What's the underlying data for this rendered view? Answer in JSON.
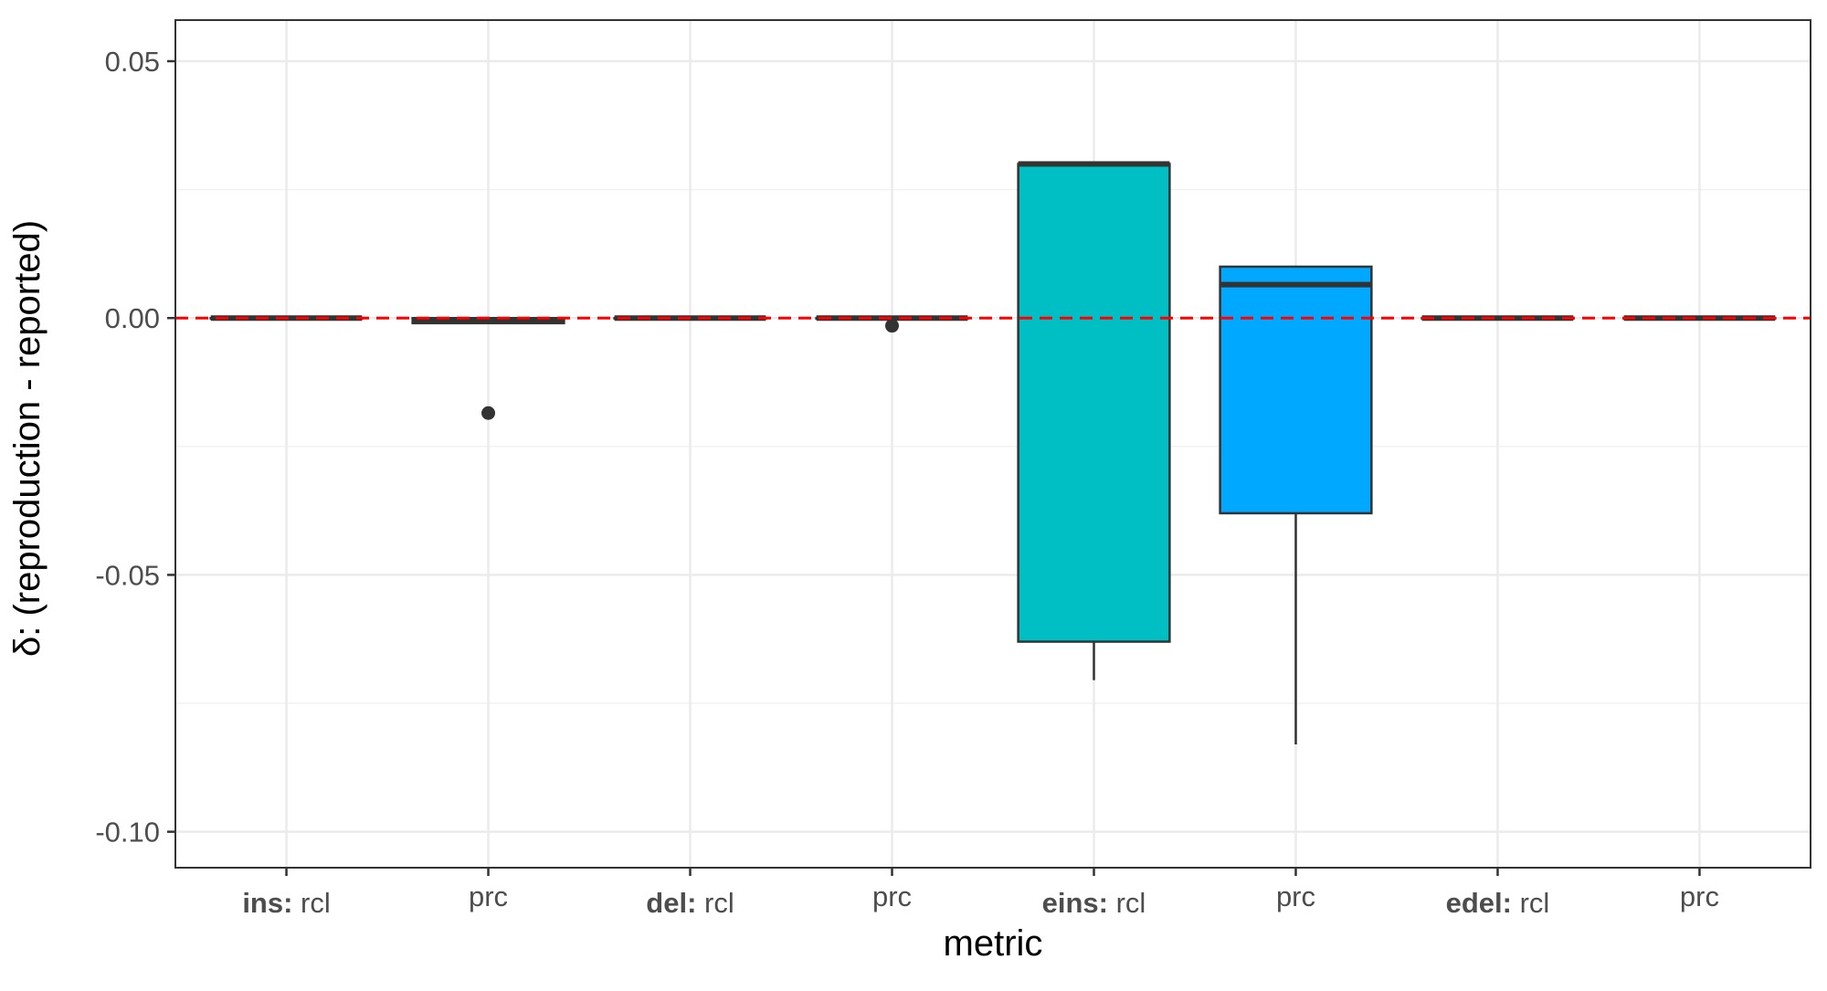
{
  "chart_data": {
    "type": "box",
    "xlabel": "metric",
    "ylabel": "δ: (reproduction - reported)",
    "ylim": [
      -0.107,
      0.058
    ],
    "y_ticks": [
      "0.05",
      "0.00",
      "-0.05",
      "-0.10"
    ],
    "y_tick_values": [
      0.05,
      0.0,
      -0.05,
      -0.1
    ],
    "reference_line": {
      "y": 0.0,
      "style": "dashed",
      "color": "#ff0000"
    },
    "grid": true,
    "categories": [
      {
        "bold": "ins:",
        "rest": " rcl"
      },
      {
        "bold": "",
        "rest": "prc"
      },
      {
        "bold": "del:",
        "rest": " rcl"
      },
      {
        "bold": "",
        "rest": "prc"
      },
      {
        "bold": "eins:",
        "rest": " rcl"
      },
      {
        "bold": "",
        "rest": "prc"
      },
      {
        "bold": "edel:",
        "rest": " rcl"
      },
      {
        "bold": "",
        "rest": "prc"
      }
    ],
    "boxes": [
      {
        "q1": 0.0,
        "median": 0.0,
        "q3": 0.0,
        "whisker_low": 0.0,
        "whisker_high": 0.0,
        "outliers": [],
        "fill": "#00bfc4"
      },
      {
        "q1": -0.001,
        "median": -0.0005,
        "q3": 0.0,
        "whisker_low": -0.001,
        "whisker_high": 0.0,
        "outliers": [
          -0.0185
        ],
        "fill": "#00a9ff"
      },
      {
        "q1": 0.0,
        "median": 0.0,
        "q3": 0.0,
        "whisker_low": 0.0,
        "whisker_high": 0.0,
        "outliers": [],
        "fill": "#00bfc4"
      },
      {
        "q1": 0.0,
        "median": 0.0,
        "q3": 0.0,
        "whisker_low": 0.0,
        "whisker_high": 0.0,
        "outliers": [
          -0.0015
        ],
        "fill": "#00a9ff"
      },
      {
        "q1": -0.063,
        "median": 0.03,
        "q3": 0.03,
        "whisker_low": -0.0705,
        "whisker_high": 0.03,
        "outliers": [],
        "fill": "#00bfc4"
      },
      {
        "q1": -0.038,
        "median": 0.0065,
        "q3": 0.01,
        "whisker_low": -0.083,
        "whisker_high": 0.01,
        "outliers": [],
        "fill": "#00a9ff"
      },
      {
        "q1": 0.0,
        "median": 0.0,
        "q3": 0.0,
        "whisker_low": 0.0,
        "whisker_high": 0.0,
        "outliers": [],
        "fill": "#00bfc4"
      },
      {
        "q1": 0.0,
        "median": 0.0,
        "q3": 0.0,
        "whisker_low": 0.0,
        "whisker_high": 0.0,
        "outliers": [],
        "fill": "#00a9ff"
      }
    ]
  }
}
